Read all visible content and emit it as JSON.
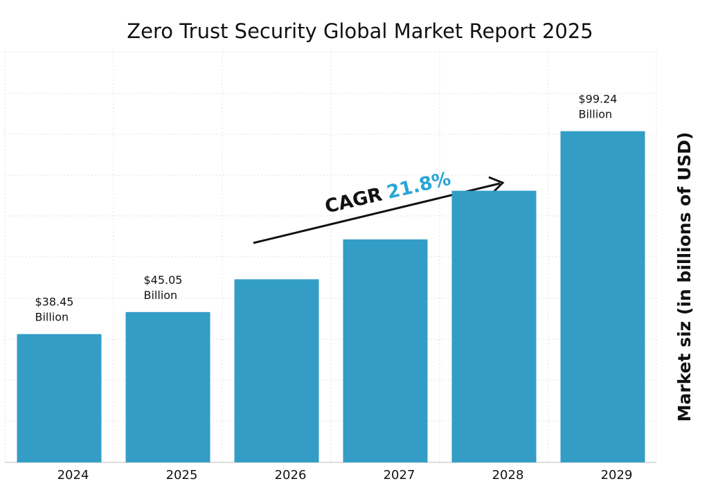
{
  "chart_data": {
    "type": "bar",
    "title": "Zero Trust Security Global Market Report 2025",
    "y_label": "Market siz (in billions of USD)",
    "categories": [
      "2024",
      "2025",
      "2026",
      "2027",
      "2028",
      "2029"
    ],
    "values": [
      38.45,
      45.05,
      54.87,
      66.83,
      81.4,
      99.24
    ],
    "value_labels": [
      "$38.45\nBillion",
      "$45.05\nBillion",
      null,
      null,
      null,
      "$99.24\nBillion"
    ],
    "color": "#339dc5",
    "ylim": [
      0,
      123
    ],
    "annotation": {
      "text": "CAGR",
      "value": "21.8%",
      "value_color": "#2aa5d6"
    }
  }
}
